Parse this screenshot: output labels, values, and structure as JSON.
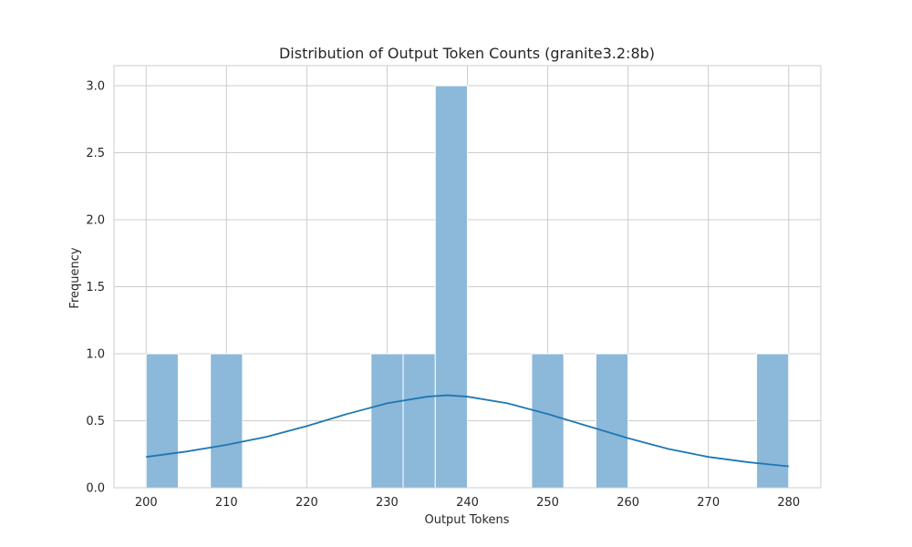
{
  "chart_data": {
    "type": "bar",
    "subtype": "histogram-with-kde",
    "title": "Distribution of Output Token Counts (granite3.2:8b)",
    "xlabel": "Output Tokens",
    "ylabel": "Frequency",
    "xlim": [
      196,
      284
    ],
    "ylim": [
      0,
      3.15
    ],
    "xticks": [
      200,
      210,
      220,
      230,
      240,
      250,
      260,
      270,
      280
    ],
    "yticks": [
      0.0,
      0.5,
      1.0,
      1.5,
      2.0,
      2.5,
      3.0
    ],
    "ytick_labels": [
      "0.0",
      "0.5",
      "1.0",
      "1.5",
      "2.0",
      "2.5",
      "3.0"
    ],
    "grid": true,
    "bars": [
      {
        "x0": 200,
        "x1": 204,
        "count": 1
      },
      {
        "x0": 208,
        "x1": 212,
        "count": 1
      },
      {
        "x0": 228,
        "x1": 232,
        "count": 1
      },
      {
        "x0": 232,
        "x1": 236,
        "count": 1
      },
      {
        "x0": 236,
        "x1": 240,
        "count": 3
      },
      {
        "x0": 248,
        "x1": 252,
        "count": 1
      },
      {
        "x0": 256,
        "x1": 260,
        "count": 1
      },
      {
        "x0": 276,
        "x1": 280,
        "count": 1
      }
    ],
    "kde": {
      "x": [
        200,
        205,
        210,
        215,
        220,
        225,
        230,
        235,
        237.5,
        240,
        245,
        250,
        255,
        260,
        265,
        270,
        275,
        280
      ],
      "y": [
        0.23,
        0.27,
        0.32,
        0.38,
        0.46,
        0.55,
        0.63,
        0.68,
        0.69,
        0.68,
        0.63,
        0.55,
        0.46,
        0.37,
        0.29,
        0.23,
        0.19,
        0.16
      ]
    },
    "colors": {
      "bar_fill": "#8cb8d9",
      "kde_line": "#1f77b4",
      "grid": "#cccccc"
    }
  }
}
